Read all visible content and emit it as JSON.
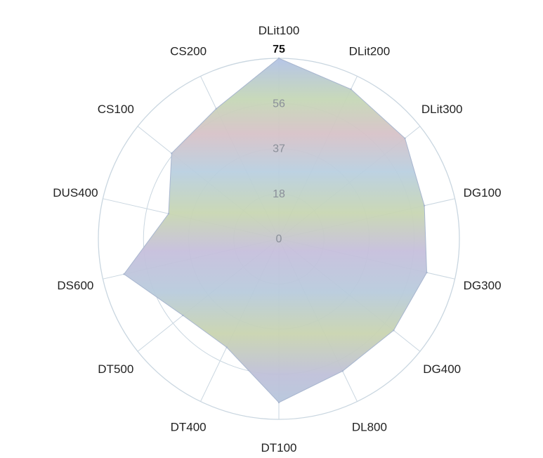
{
  "chart_data": {
    "type": "radar",
    "axes": [
      "DLit100",
      "DLit200",
      "DLit300",
      "DG100",
      "DG300",
      "DG400",
      "DL800",
      "DT100",
      "DT400",
      "DT500",
      "DS600",
      "DUS400",
      "CS100",
      "CS200"
    ],
    "values": [
      75,
      69,
      67,
      62,
      63,
      61,
      61,
      68,
      50,
      51,
      66,
      47,
      57,
      60
    ],
    "rticks": [
      "18",
      "37",
      "56",
      "75"
    ],
    "center_label": "0",
    "rmax": 75,
    "colors": {
      "fill_top": "#a9bfe2",
      "fill_mid": "#c6d8b4",
      "fill_bottom": "#bfc2d9",
      "grid": "#c9d6e0"
    }
  }
}
